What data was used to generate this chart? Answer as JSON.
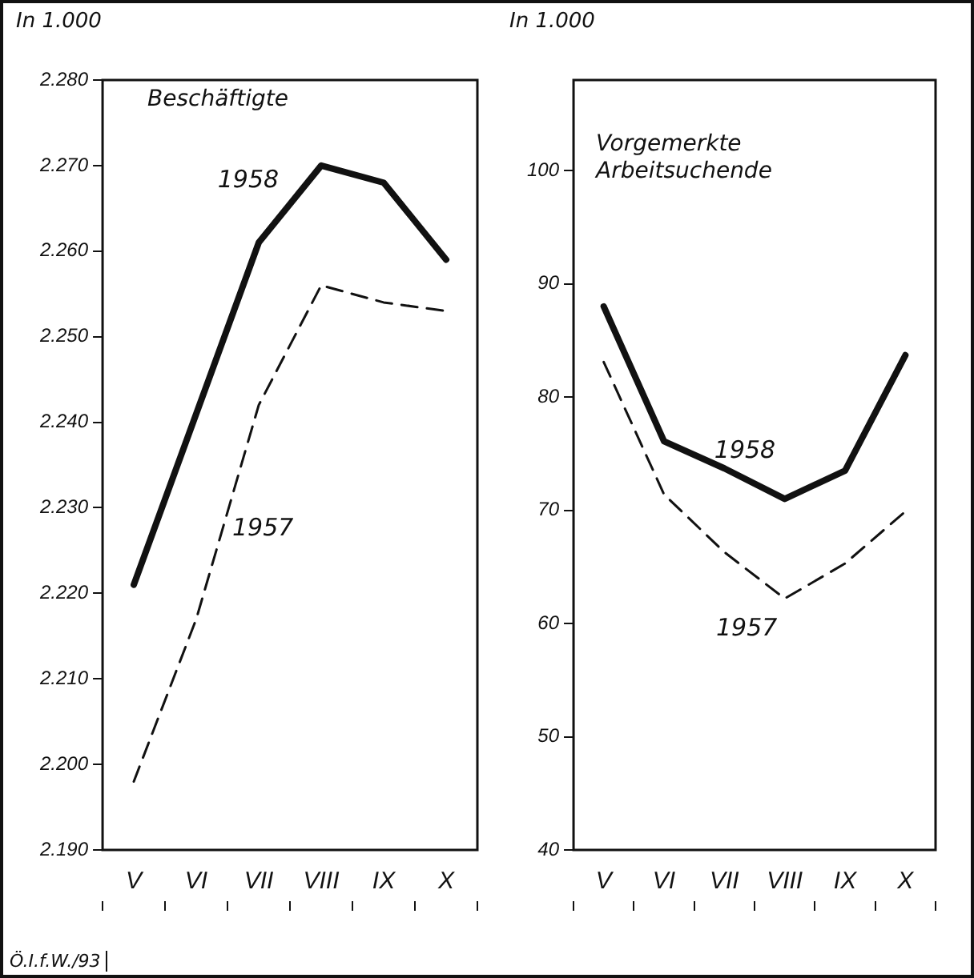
{
  "chart_data": [
    {
      "type": "line",
      "title": "Beschäftigte",
      "ylabel": "In 1.000",
      "categories": [
        "V",
        "VI",
        "VII",
        "VIII",
        "IX",
        "X"
      ],
      "series": [
        {
          "name": "1958",
          "color": "#111111",
          "line_style": "solid",
          "values": [
            2221,
            2241,
            2261,
            2270,
            2268,
            2259
          ]
        },
        {
          "name": "1957",
          "color": "#111111",
          "line_style": "dashed",
          "values": [
            2198,
            2217,
            2242,
            2256,
            2254,
            2253
          ]
        }
      ],
      "ylim": [
        2190,
        2280
      ],
      "yticks": [
        {
          "value": 2190,
          "label": "2.190"
        },
        {
          "value": 2200,
          "label": "2.200"
        },
        {
          "value": 2210,
          "label": "2.210"
        },
        {
          "value": 2220,
          "label": "2.220"
        },
        {
          "value": 2230,
          "label": "2.230"
        },
        {
          "value": 2240,
          "label": "2.240"
        },
        {
          "value": 2250,
          "label": "2.250"
        },
        {
          "value": 2260,
          "label": "2.260"
        },
        {
          "value": 2270,
          "label": "2.270"
        },
        {
          "value": 2280,
          "label": "2.280"
        }
      ],
      "annotations": [
        "Ö.I.f.W./93"
      ],
      "grid": false,
      "legend": false,
      "marker": "none"
    },
    {
      "type": "line",
      "title": "Vorgemerkte Arbeitsuchende",
      "ylabel": "In 1.000",
      "categories": [
        "V",
        "VI",
        "VII",
        "VIII",
        "IX",
        "X"
      ],
      "series": [
        {
          "name": "1958",
          "color": "#111111",
          "line_style": "solid",
          "values": [
            88.0,
            76.1,
            73.7,
            71.0,
            73.5,
            83.7
          ]
        },
        {
          "name": "1957",
          "color": "#111111",
          "line_style": "dashed",
          "values": [
            83.1,
            71.4,
            66.3,
            62.2,
            65.3,
            69.9
          ]
        }
      ],
      "ylim": [
        40,
        108
      ],
      "yticks": [
        40,
        50,
        60,
        70,
        80,
        90,
        100
      ],
      "grid": false,
      "legend": false,
      "marker": "none"
    }
  ]
}
